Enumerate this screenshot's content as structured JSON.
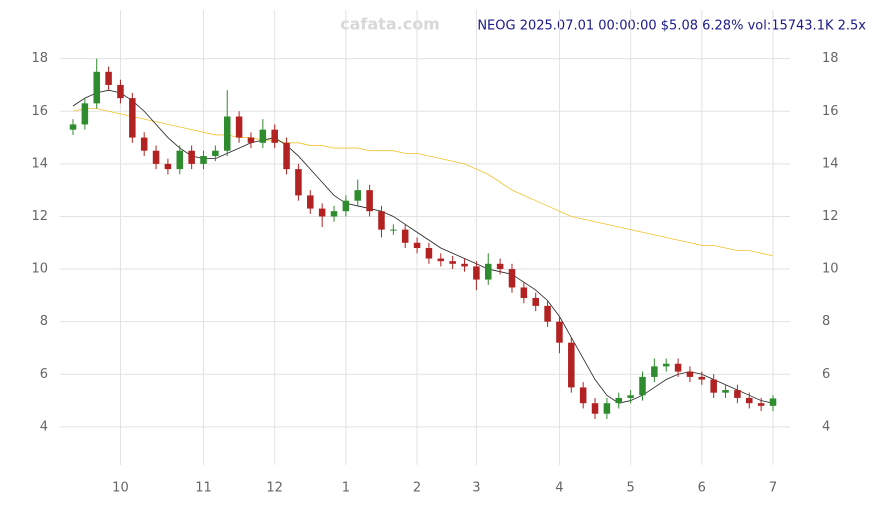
{
  "chart_data": {
    "type": "candlestick",
    "title": "NEOG 2025.07.01 00:00:00 $5.08 6.28% vol:15743.1K 2.5x",
    "watermark": "cafata.com",
    "categories": [
      null,
      null,
      null,
      null,
      "10",
      null,
      null,
      null,
      null,
      null,
      null,
      "11",
      null,
      null,
      null,
      null,
      null,
      "12",
      null,
      null,
      null,
      null,
      null,
      "1",
      null,
      null,
      null,
      null,
      null,
      "2",
      null,
      null,
      null,
      null,
      "3",
      null,
      null,
      null,
      null,
      null,
      null,
      "4",
      null,
      null,
      null,
      null,
      null,
      "5",
      null,
      null,
      null,
      null,
      null,
      "6",
      null,
      null,
      null,
      null,
      null,
      "7"
    ],
    "open": [
      15.3,
      15.5,
      16.3,
      17.5,
      17.0,
      16.5,
      15.0,
      14.5,
      14.0,
      13.8,
      14.5,
      14.0,
      14.3,
      14.5,
      15.8,
      15.0,
      14.8,
      15.3,
      14.8,
      13.8,
      12.8,
      12.3,
      12.0,
      12.2,
      12.6,
      13.0,
      12.2,
      11.5,
      11.5,
      11.0,
      10.8,
      10.4,
      10.3,
      10.2,
      10.1,
      9.6,
      10.2,
      10.0,
      9.3,
      8.9,
      8.6,
      8.0,
      7.2,
      5.5,
      4.9,
      4.5,
      4.9,
      5.1,
      5.2,
      5.9,
      6.3,
      6.4,
      6.1,
      5.9,
      5.8,
      5.3,
      5.4,
      5.1,
      4.9,
      4.8
    ],
    "high": [
      15.7,
      16.5,
      18.0,
      17.7,
      17.2,
      16.7,
      15.2,
      14.7,
      14.2,
      14.7,
      14.7,
      14.5,
      14.7,
      16.8,
      16.0,
      15.2,
      15.7,
      15.5,
      15.0,
      14.0,
      13.0,
      12.5,
      12.4,
      12.8,
      13.4,
      13.2,
      12.4,
      11.7,
      11.7,
      11.2,
      11.0,
      10.6,
      10.5,
      10.4,
      10.3,
      10.6,
      10.4,
      10.2,
      9.5,
      9.1,
      8.8,
      8.2,
      7.4,
      5.7,
      5.1,
      5.1,
      5.3,
      5.4,
      6.1,
      6.6,
      6.6,
      6.6,
      6.3,
      6.1,
      6.0,
      5.6,
      5.6,
      5.3,
      5.1,
      5.2
    ],
    "low": [
      15.1,
      15.3,
      16.1,
      16.8,
      16.3,
      14.8,
      14.3,
      13.8,
      13.6,
      13.6,
      13.8,
      13.8,
      14.1,
      14.3,
      14.8,
      14.6,
      14.6,
      14.6,
      13.6,
      12.6,
      12.1,
      11.6,
      11.8,
      12.0,
      12.4,
      12.0,
      11.2,
      11.3,
      10.8,
      10.6,
      10.2,
      10.1,
      10.0,
      9.9,
      9.2,
      9.4,
      9.8,
      9.1,
      8.7,
      8.4,
      7.8,
      6.8,
      5.3,
      4.7,
      4.3,
      4.3,
      4.7,
      4.9,
      5.0,
      5.7,
      6.1,
      5.9,
      5.7,
      5.6,
      5.1,
      5.1,
      4.9,
      4.7,
      4.6,
      4.6
    ],
    "close": [
      15.5,
      16.3,
      17.5,
      17.0,
      16.5,
      15.0,
      14.5,
      14.0,
      13.8,
      14.5,
      14.0,
      14.3,
      14.5,
      15.8,
      15.0,
      14.8,
      15.3,
      14.8,
      13.8,
      12.8,
      12.3,
      12.0,
      12.2,
      12.6,
      13.0,
      12.2,
      11.5,
      11.5,
      11.0,
      10.8,
      10.4,
      10.3,
      10.2,
      10.1,
      9.6,
      10.2,
      10.0,
      9.3,
      8.9,
      8.6,
      8.0,
      7.2,
      5.5,
      4.9,
      4.5,
      4.9,
      5.1,
      5.2,
      5.9,
      6.3,
      6.4,
      6.1,
      5.9,
      5.8,
      5.3,
      5.4,
      5.1,
      4.9,
      4.8,
      5.08
    ],
    "up_color": "#2e8b2e",
    "down_color": "#b22222",
    "series": [
      {
        "color": "#f2c230",
        "values": [
          16.0,
          16.1,
          16.1,
          16.0,
          15.9,
          15.8,
          15.7,
          15.6,
          15.5,
          15.4,
          15.3,
          15.2,
          15.1,
          15.1,
          15.0,
          15.0,
          14.9,
          14.9,
          14.8,
          14.8,
          14.7,
          14.7,
          14.6,
          14.6,
          14.6,
          14.5,
          14.5,
          14.5,
          14.4,
          14.4,
          14.3,
          14.2,
          14.1,
          14.0,
          13.8,
          13.6,
          13.3,
          13.0,
          12.8,
          12.6,
          12.4,
          12.2,
          12.0,
          11.9,
          11.8,
          11.7,
          11.6,
          11.5,
          11.4,
          11.3,
          11.2,
          11.1,
          11.0,
          10.9,
          10.9,
          10.8,
          10.7,
          10.7,
          10.6,
          10.5
        ]
      },
      {
        "color": "#222222",
        "values": [
          16.2,
          16.5,
          16.7,
          16.8,
          16.7,
          16.4,
          16.0,
          15.5,
          15.0,
          14.6,
          14.3,
          14.2,
          14.2,
          14.4,
          14.6,
          14.8,
          14.9,
          15.0,
          14.7,
          14.3,
          13.8,
          13.3,
          12.8,
          12.5,
          12.4,
          12.3,
          12.2,
          12.0,
          11.7,
          11.4,
          11.1,
          10.8,
          10.6,
          10.4,
          10.2,
          10.0,
          9.9,
          9.8,
          9.5,
          9.2,
          8.8,
          8.2,
          7.4,
          6.6,
          5.8,
          5.2,
          4.9,
          5.0,
          5.2,
          5.5,
          5.8,
          6.0,
          6.1,
          6.0,
          5.8,
          5.6,
          5.4,
          5.2,
          5.0,
          4.9
        ]
      }
    ],
    "ylim": [
      2.55,
      19.85
    ],
    "yticks": [
      4,
      6,
      8,
      10,
      12,
      14,
      16,
      18
    ],
    "grid": true
  }
}
